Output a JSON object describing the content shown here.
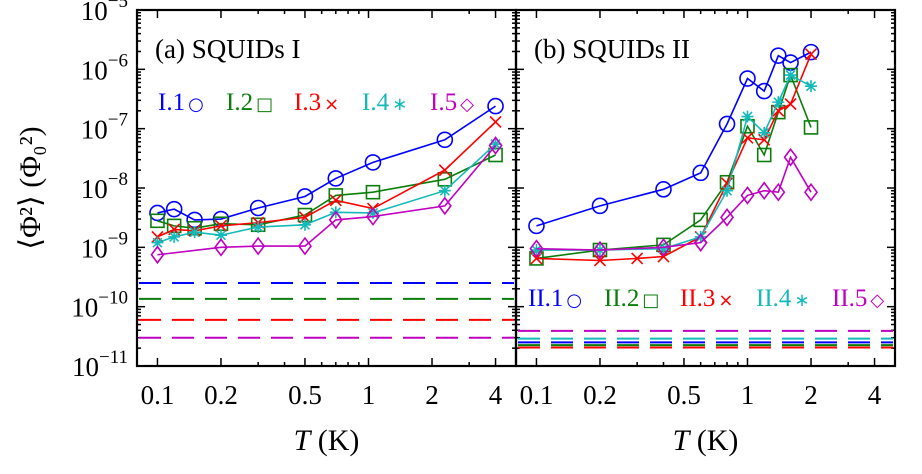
{
  "colors": {
    "blue": "#0000ff",
    "green": "#0b7d0b",
    "red": "#ff0000",
    "cyan": "#14b9b9",
    "magenta": "#c000c0"
  },
  "y_axis": {
    "label": "⟨Φ²⟩ (Φ₀²)",
    "scale": "log",
    "ylim": [
      1e-11,
      1e-05
    ],
    "ticks": [
      {
        "value": 1e-11,
        "base": "10",
        "exp": "−11"
      },
      {
        "value": 1e-10,
        "base": "10",
        "exp": "−10"
      },
      {
        "value": 1e-09,
        "base": "10",
        "exp": "−9"
      },
      {
        "value": 1e-08,
        "base": "10",
        "exp": "−8"
      },
      {
        "value": 1e-07,
        "base": "10",
        "exp": "−7"
      },
      {
        "value": 1e-06,
        "base": "10",
        "exp": "−6"
      },
      {
        "value": 1e-05,
        "base": "10",
        "exp": "−5"
      }
    ]
  },
  "chart_data": [
    {
      "type": "line",
      "panel": "a",
      "title": "(a) SQUIDs I",
      "xlabel_var": "T",
      "xlabel_unit": "(K)",
      "xscale": "log",
      "xlim": [
        0.08,
        5
      ],
      "yscale": "log",
      "ylim": [
        1e-11,
        1e-05
      ],
      "xticks": [
        0.1,
        0.2,
        0.5,
        1,
        2,
        4
      ],
      "xtick_labels": [
        "0.1",
        "0.2",
        "0.5",
        "1",
        "2",
        "4"
      ],
      "grid": false,
      "series": [
        {
          "name": "I.1",
          "color_key": "blue",
          "marker": "circle",
          "x": [
            0.1,
            0.12,
            0.15,
            0.2,
            0.3,
            0.5,
            0.7,
            1.05,
            2.3,
            4.0
          ],
          "y": [
            3.8e-09,
            4.4e-09,
            2.9e-09,
            3e-09,
            4.6e-09,
            7.2e-09,
            1.45e-08,
            2.7e-08,
            6.5e-08,
            2.4e-07
          ]
        },
        {
          "name": "I.2",
          "color_key": "green",
          "marker": "square",
          "x": [
            0.1,
            0.12,
            0.15,
            0.2,
            0.3,
            0.5,
            0.7,
            1.05,
            2.3,
            4.0
          ],
          "y": [
            2.8e-09,
            2.3e-09,
            2.1e-09,
            2.5e-09,
            2.4e-09,
            3.5e-09,
            7.5e-09,
            8.5e-09,
            1.4e-08,
            3.6e-08
          ]
        },
        {
          "name": "I.3",
          "color_key": "red",
          "marker": "x",
          "x": [
            0.1,
            0.12,
            0.15,
            0.2,
            0.3,
            0.5,
            0.7,
            1.05,
            2.3,
            4.0
          ],
          "y": [
            1.5e-09,
            2e-09,
            1.9e-09,
            2.3e-09,
            2.6e-09,
            3.2e-09,
            6.2e-09,
            4.5e-09,
            2e-08,
            1.3e-07
          ]
        },
        {
          "name": "I.4",
          "color_key": "cyan",
          "marker": "star",
          "x": [
            0.1,
            0.12,
            0.15,
            0.2,
            0.3,
            0.5,
            0.7,
            1.05,
            2.3,
            4.0
          ],
          "y": [
            1.2e-09,
            1.5e-09,
            1.8e-09,
            1.6e-09,
            2.2e-09,
            2.4e-09,
            3.9e-09,
            3.8e-09,
            9e-09,
            5.5e-08
          ]
        },
        {
          "name": "I.5",
          "color_key": "magenta",
          "marker": "diamond",
          "x": [
            0.1,
            0.2,
            0.3,
            0.5,
            0.7,
            1.05,
            2.3,
            4.0
          ],
          "y": [
            7.5e-10,
            1e-09,
            1.05e-09,
            1.05e-09,
            2.9e-09,
            3.3e-09,
            5e-09,
            5.2e-08
          ]
        }
      ],
      "reference_levels": [
        {
          "color_key": "blue",
          "value": 2.5e-10
        },
        {
          "color_key": "green",
          "value": 1.35e-10
        },
        {
          "color_key": "red",
          "value": 6e-11
        },
        {
          "color_key": "magenta",
          "value": 3e-11
        }
      ],
      "legend": [
        {
          "label": "I.1",
          "symbol": "○",
          "color_key": "blue"
        },
        {
          "label": "I.2",
          "symbol": "□",
          "color_key": "green"
        },
        {
          "label": "I.3",
          "symbol": "×",
          "color_key": "red"
        },
        {
          "label": "I.4",
          "symbol": "∗",
          "color_key": "cyan"
        },
        {
          "label": "I.5",
          "symbol": "◇",
          "color_key": "magenta"
        }
      ]
    },
    {
      "type": "line",
      "panel": "b",
      "title": "(b) SQUIDs II",
      "xlabel_var": "T",
      "xlabel_unit": "(K)",
      "xscale": "log",
      "xlim": [
        0.08,
        5
      ],
      "yscale": "log",
      "ylim": [
        1e-11,
        1e-05
      ],
      "xticks": [
        0.1,
        0.2,
        0.5,
        1,
        2,
        4
      ],
      "xtick_labels": [
        "0.1",
        "0.2",
        "0.5",
        "1",
        "2",
        "4"
      ],
      "grid": false,
      "series": [
        {
          "name": "II.1",
          "color_key": "blue",
          "marker": "circle",
          "x": [
            0.1,
            0.2,
            0.4,
            0.6,
            0.8,
            1.0,
            1.2,
            1.4,
            1.6,
            2.0
          ],
          "y": [
            2.3e-09,
            5e-09,
            9.5e-09,
            1.8e-08,
            1.2e-07,
            7e-07,
            4.3e-07,
            1.7e-06,
            1.3e-06,
            1.95e-06
          ]
        },
        {
          "name": "II.2",
          "color_key": "green",
          "marker": "square",
          "x": [
            0.1,
            0.2,
            0.4,
            0.6,
            0.8,
            1.0,
            1.2,
            1.4,
            1.6,
            2.0
          ],
          "y": [
            6.5e-10,
            9e-10,
            1.1e-09,
            2.9e-09,
            1.25e-08,
            1.1e-07,
            3.6e-08,
            1.9e-07,
            8e-07,
            1.05e-07
          ]
        },
        {
          "name": "II.3",
          "color_key": "red",
          "marker": "x",
          "x": [
            0.1,
            0.2,
            0.3,
            0.4,
            0.6,
            0.8,
            1.0,
            1.2,
            1.4,
            1.6,
            2.0
          ],
          "y": [
            6.5e-10,
            6e-10,
            6.5e-10,
            7e-10,
            1.5e-09,
            1.2e-08,
            7e-08,
            6.5e-08,
            2e-07,
            2.6e-07,
            1.8e-06
          ]
        },
        {
          "name": "II.4",
          "color_key": "cyan",
          "marker": "star",
          "x": [
            0.1,
            0.2,
            0.4,
            0.6,
            0.8,
            1.0,
            1.2,
            1.4,
            1.6,
            2.0
          ],
          "y": [
            9e-10,
            9e-10,
            9.5e-10,
            1.5e-09,
            9e-09,
            1.6e-07,
            8.5e-08,
            2.8e-07,
            8e-07,
            5.2e-07
          ]
        },
        {
          "name": "II.5",
          "color_key": "magenta",
          "marker": "diamond",
          "x": [
            0.1,
            0.2,
            0.4,
            0.6,
            0.8,
            1.0,
            1.2,
            1.4,
            1.6,
            2.0
          ],
          "y": [
            9.5e-10,
            9e-10,
            1e-09,
            1.2e-09,
            3.2e-09,
            7.5e-09,
            9e-09,
            8.5e-09,
            3.3e-08,
            8.5e-09
          ]
        }
      ],
      "reference_levels": [
        {
          "color_key": "magenta",
          "value": 3.9e-11
        },
        {
          "color_key": "cyan",
          "value": 2.9e-11
        },
        {
          "color_key": "blue",
          "value": 2.5e-11
        },
        {
          "color_key": "green",
          "value": 2.25e-11
        },
        {
          "color_key": "red",
          "value": 2.05e-11
        }
      ],
      "legend": [
        {
          "label": "II.1",
          "symbol": "○",
          "color_key": "blue"
        },
        {
          "label": "II.2",
          "symbol": "□",
          "color_key": "green"
        },
        {
          "label": "II.3",
          "symbol": "×",
          "color_key": "red"
        },
        {
          "label": "II.4",
          "symbol": "∗",
          "color_key": "cyan"
        },
        {
          "label": "II.5",
          "symbol": "◇",
          "color_key": "magenta"
        }
      ]
    }
  ]
}
